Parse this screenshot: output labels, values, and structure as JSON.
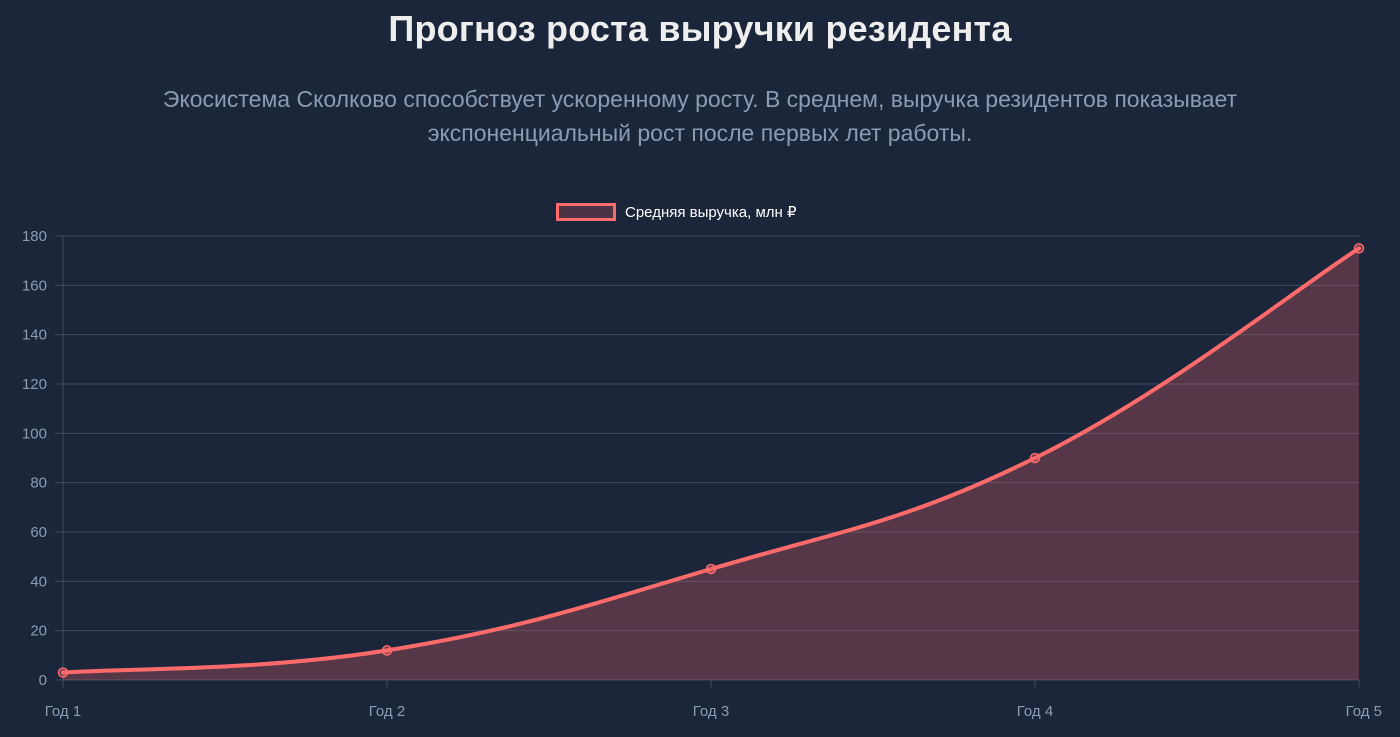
{
  "header": {
    "title": "Прогноз роста выручки резидента",
    "subtitle": "Экосистема Сколково способствует ускоренному росту. В среднем, выручка резидентов показывает экспоненциальный рост после первых лет работы."
  },
  "chart_data": {
    "type": "area",
    "categories": [
      "Год 1",
      "Год 2",
      "Год 3",
      "Год 4",
      "Год 5"
    ],
    "series": [
      {
        "name": "Средняя выручка, млн ₽",
        "values": [
          3,
          12,
          45,
          90,
          175
        ],
        "color": "#ff6b6b",
        "fill": "rgba(255, 107, 107, 0.25)"
      }
    ],
    "ylim": [
      0,
      180
    ],
    "yticks": [
      0,
      20,
      40,
      60,
      80,
      100,
      120,
      140,
      160,
      180
    ],
    "grid": true,
    "legend": "top-center",
    "colors": {
      "background": "#1c263b",
      "grid": "#3d4b63",
      "text": "#8b9bb4"
    }
  }
}
